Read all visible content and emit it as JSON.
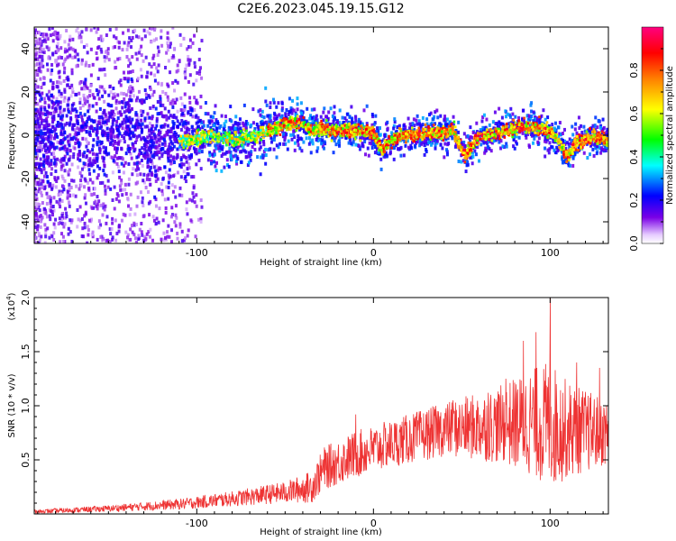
{
  "title": "C2E6.2023.045.19.15.G12",
  "chart_data": [
    {
      "type": "heatmap",
      "xlabel": "Height of straight line (km)",
      "ylabel": "Frequency (Hz)",
      "xlim": [
        -192,
        133
      ],
      "ylim": [
        -50,
        50
      ],
      "x_ticks": [
        -100,
        0,
        100
      ],
      "y_ticks": [
        -40,
        -20,
        0,
        20,
        40
      ],
      "colorbar": {
        "label": "Normalized spectral amplitude",
        "range": [
          0,
          1
        ],
        "ticks": [
          "0.0",
          "0.2",
          "0.4",
          "0.6",
          "0.8"
        ],
        "colormap": [
          "#ffffff",
          "#7a00e6",
          "#0000ff",
          "#00ffff",
          "#00ff00",
          "#ffff00",
          "#ff8000",
          "#ff0000",
          "#ff0080"
        ]
      },
      "ridge": {
        "x": [
          -192,
          -160,
          -140,
          -120,
          -105,
          -95,
          -80,
          -70,
          -60,
          -50,
          -45,
          -35,
          -20,
          -10,
          0,
          5,
          10,
          15,
          25,
          35,
          45,
          48,
          52,
          58,
          65,
          75,
          85,
          95,
          100,
          105,
          110,
          115,
          125,
          133
        ],
        "y": [
          0,
          1,
          2,
          -1,
          -3,
          0,
          -2,
          -1,
          2,
          5,
          6,
          3,
          2,
          2,
          1,
          -7,
          -2,
          0,
          0,
          1,
          2,
          -3,
          -9,
          -2,
          0,
          2,
          4,
          3,
          2,
          -3,
          -10,
          -3,
          -1,
          -2
        ]
      }
    },
    {
      "type": "line",
      "xlabel": "Height of straight line (km)",
      "ylabel": "SNR (10 * v/v)",
      "y_scale_label": "(x10",
      "y_scale_exp": "4",
      "xlim": [
        -192,
        133
      ],
      "ylim": [
        0,
        2.0
      ],
      "x_ticks": [
        -100,
        0,
        100
      ],
      "y_ticks": [
        "0.5",
        "1.0",
        "1.5",
        "2.0"
      ],
      "series": [
        {
          "color": "#ee3333",
          "envelope": {
            "x": [
              -192,
              -150,
              -110,
              -80,
              -50,
              -35,
              -28,
              -10,
              10,
              40,
              70,
              90,
              100,
              110,
              133
            ],
            "mean": [
              0.02,
              0.05,
              0.09,
              0.14,
              0.2,
              0.25,
              0.42,
              0.55,
              0.65,
              0.78,
              0.82,
              0.85,
              0.82,
              0.78,
              0.75
            ],
            "amp": [
              0.02,
              0.03,
              0.05,
              0.07,
              0.1,
              0.15,
              0.2,
              0.22,
              0.22,
              0.25,
              0.35,
              0.5,
              0.6,
              0.45,
              0.3
            ]
          },
          "peaks": [
            [
              -10,
              0.92
            ],
            [
              45,
              1.05
            ],
            [
              65,
              1.12
            ],
            [
              75,
              1.25
            ],
            [
              85,
              1.6
            ],
            [
              92,
              1.68
            ],
            [
              100,
              2.0
            ],
            [
              115,
              1.4
            ],
            [
              128,
              1.35
            ]
          ]
        }
      ]
    }
  ]
}
